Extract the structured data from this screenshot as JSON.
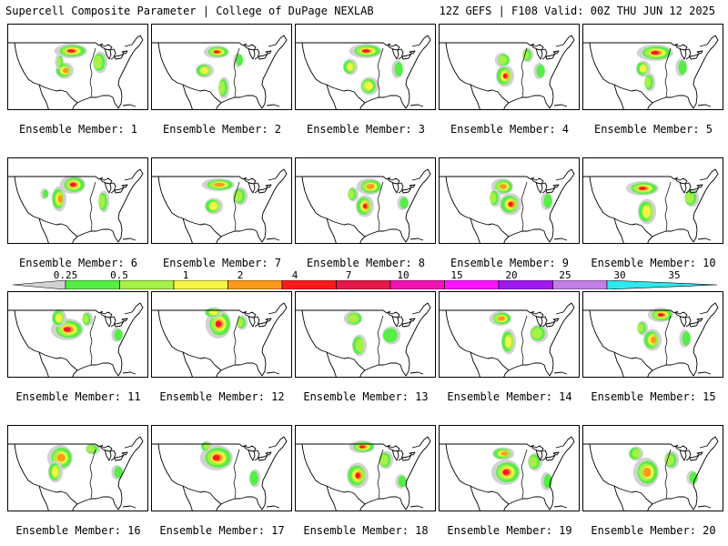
{
  "header": {
    "title_left": "Supercell Composite Parameter | College of DuPage NEXLAB",
    "title_right": "12Z GEFS | F108 Valid: 00Z THU JUN 12 2025"
  },
  "panels": [
    {
      "label": "Ensemble Member: 1"
    },
    {
      "label": "Ensemble Member: 2"
    },
    {
      "label": "Ensemble Member: 3"
    },
    {
      "label": "Ensemble Member: 4"
    },
    {
      "label": "Ensemble Member: 5"
    },
    {
      "label": "Ensemble Member: 6"
    },
    {
      "label": "Ensemble Member: 7"
    },
    {
      "label": "Ensemble Member: 8"
    },
    {
      "label": "Ensemble Member: 9"
    },
    {
      "label": "Ensemble Member: 10"
    },
    {
      "label": "Ensemble Member: 11"
    },
    {
      "label": "Ensemble Member: 12"
    },
    {
      "label": "Ensemble Member: 13"
    },
    {
      "label": "Ensemble Member: 14"
    },
    {
      "label": "Ensemble Member: 15"
    },
    {
      "label": "Ensemble Member: 16"
    },
    {
      "label": "Ensemble Member: 17"
    },
    {
      "label": "Ensemble Member: 18"
    },
    {
      "label": "Ensemble Member: 19"
    },
    {
      "label": "Ensemble Member: 20"
    }
  ],
  "colorbar": {
    "labels": [
      "0.25",
      "0.5",
      "1",
      "2",
      "4",
      "7",
      "10",
      "15",
      "20",
      "25",
      "30",
      "35"
    ],
    "colors": [
      "#d2d2d2",
      "#55ee44",
      "#a6f048",
      "#f6f446",
      "#ff9a1c",
      "#ff1a1a",
      "#e51a4a",
      "#f014b4",
      "#ff14ff",
      "#a019f0",
      "#c27ee6",
      "#2ee8ee"
    ]
  }
}
